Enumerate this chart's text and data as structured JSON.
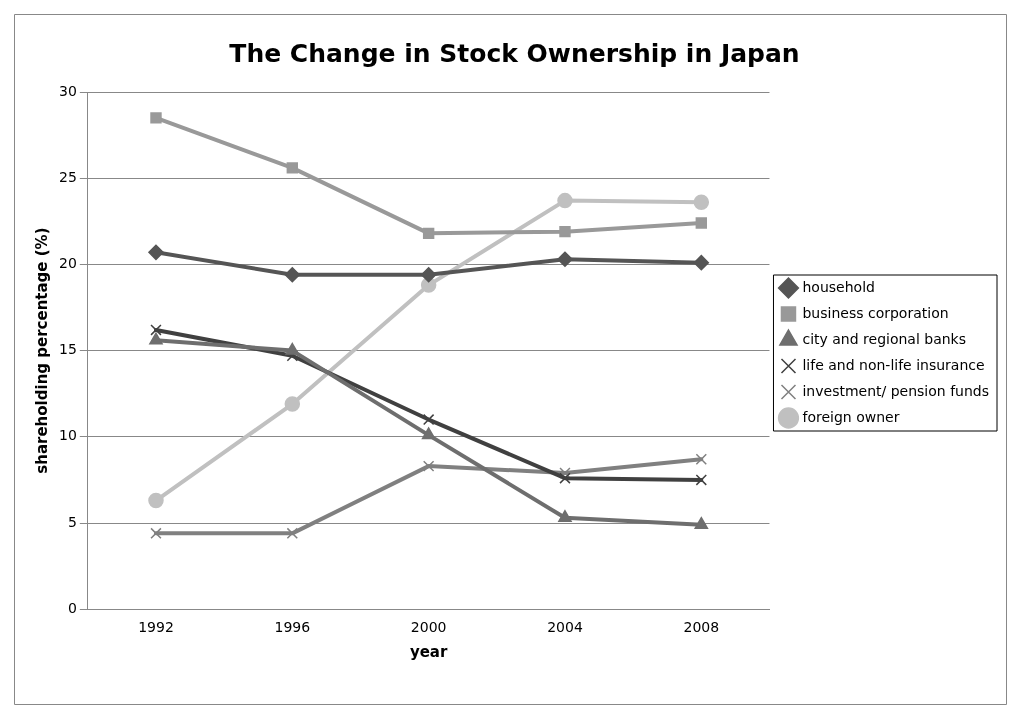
{
  "chart_data": {
    "type": "line",
    "title": "The Change in Stock Ownership in Japan",
    "xlabel": "year",
    "ylabel": "shareholding percentage (%)",
    "categories": [
      "1992",
      "1996",
      "2000",
      "2004",
      "2008"
    ],
    "series": [
      {
        "name": "household",
        "color": "#555555",
        "marker": "diamond",
        "values": [
          20.7,
          19.4,
          19.4,
          20.3,
          20.1
        ]
      },
      {
        "name": "business corporation",
        "color": "#999999",
        "marker": "square",
        "values": [
          28.5,
          25.6,
          21.8,
          21.9,
          22.4
        ]
      },
      {
        "name": "city and regional banks",
        "color": "#6e6e6e",
        "marker": "triangle",
        "values": [
          15.6,
          15.0,
          10.1,
          5.3,
          4.9
        ]
      },
      {
        "name": "life and non-life insurance",
        "color": "#404040",
        "marker": "cross",
        "values": [
          16.2,
          14.7,
          11.0,
          7.6,
          7.5
        ]
      },
      {
        "name": "investment/ pension funds",
        "color": "#808080",
        "marker": "cross",
        "values": [
          4.4,
          4.4,
          8.3,
          7.9,
          8.7
        ]
      },
      {
        "name": "foreign owner",
        "color": "#c0c0c0",
        "marker": "circle",
        "values": [
          6.3,
          11.9,
          18.8,
          23.7,
          23.6
        ]
      }
    ],
    "ylim": [
      0,
      30
    ],
    "yticks": [
      0,
      5,
      10,
      15,
      20,
      25,
      30
    ],
    "grid": "y",
    "legend": "right",
    "line_style": "solid"
  }
}
